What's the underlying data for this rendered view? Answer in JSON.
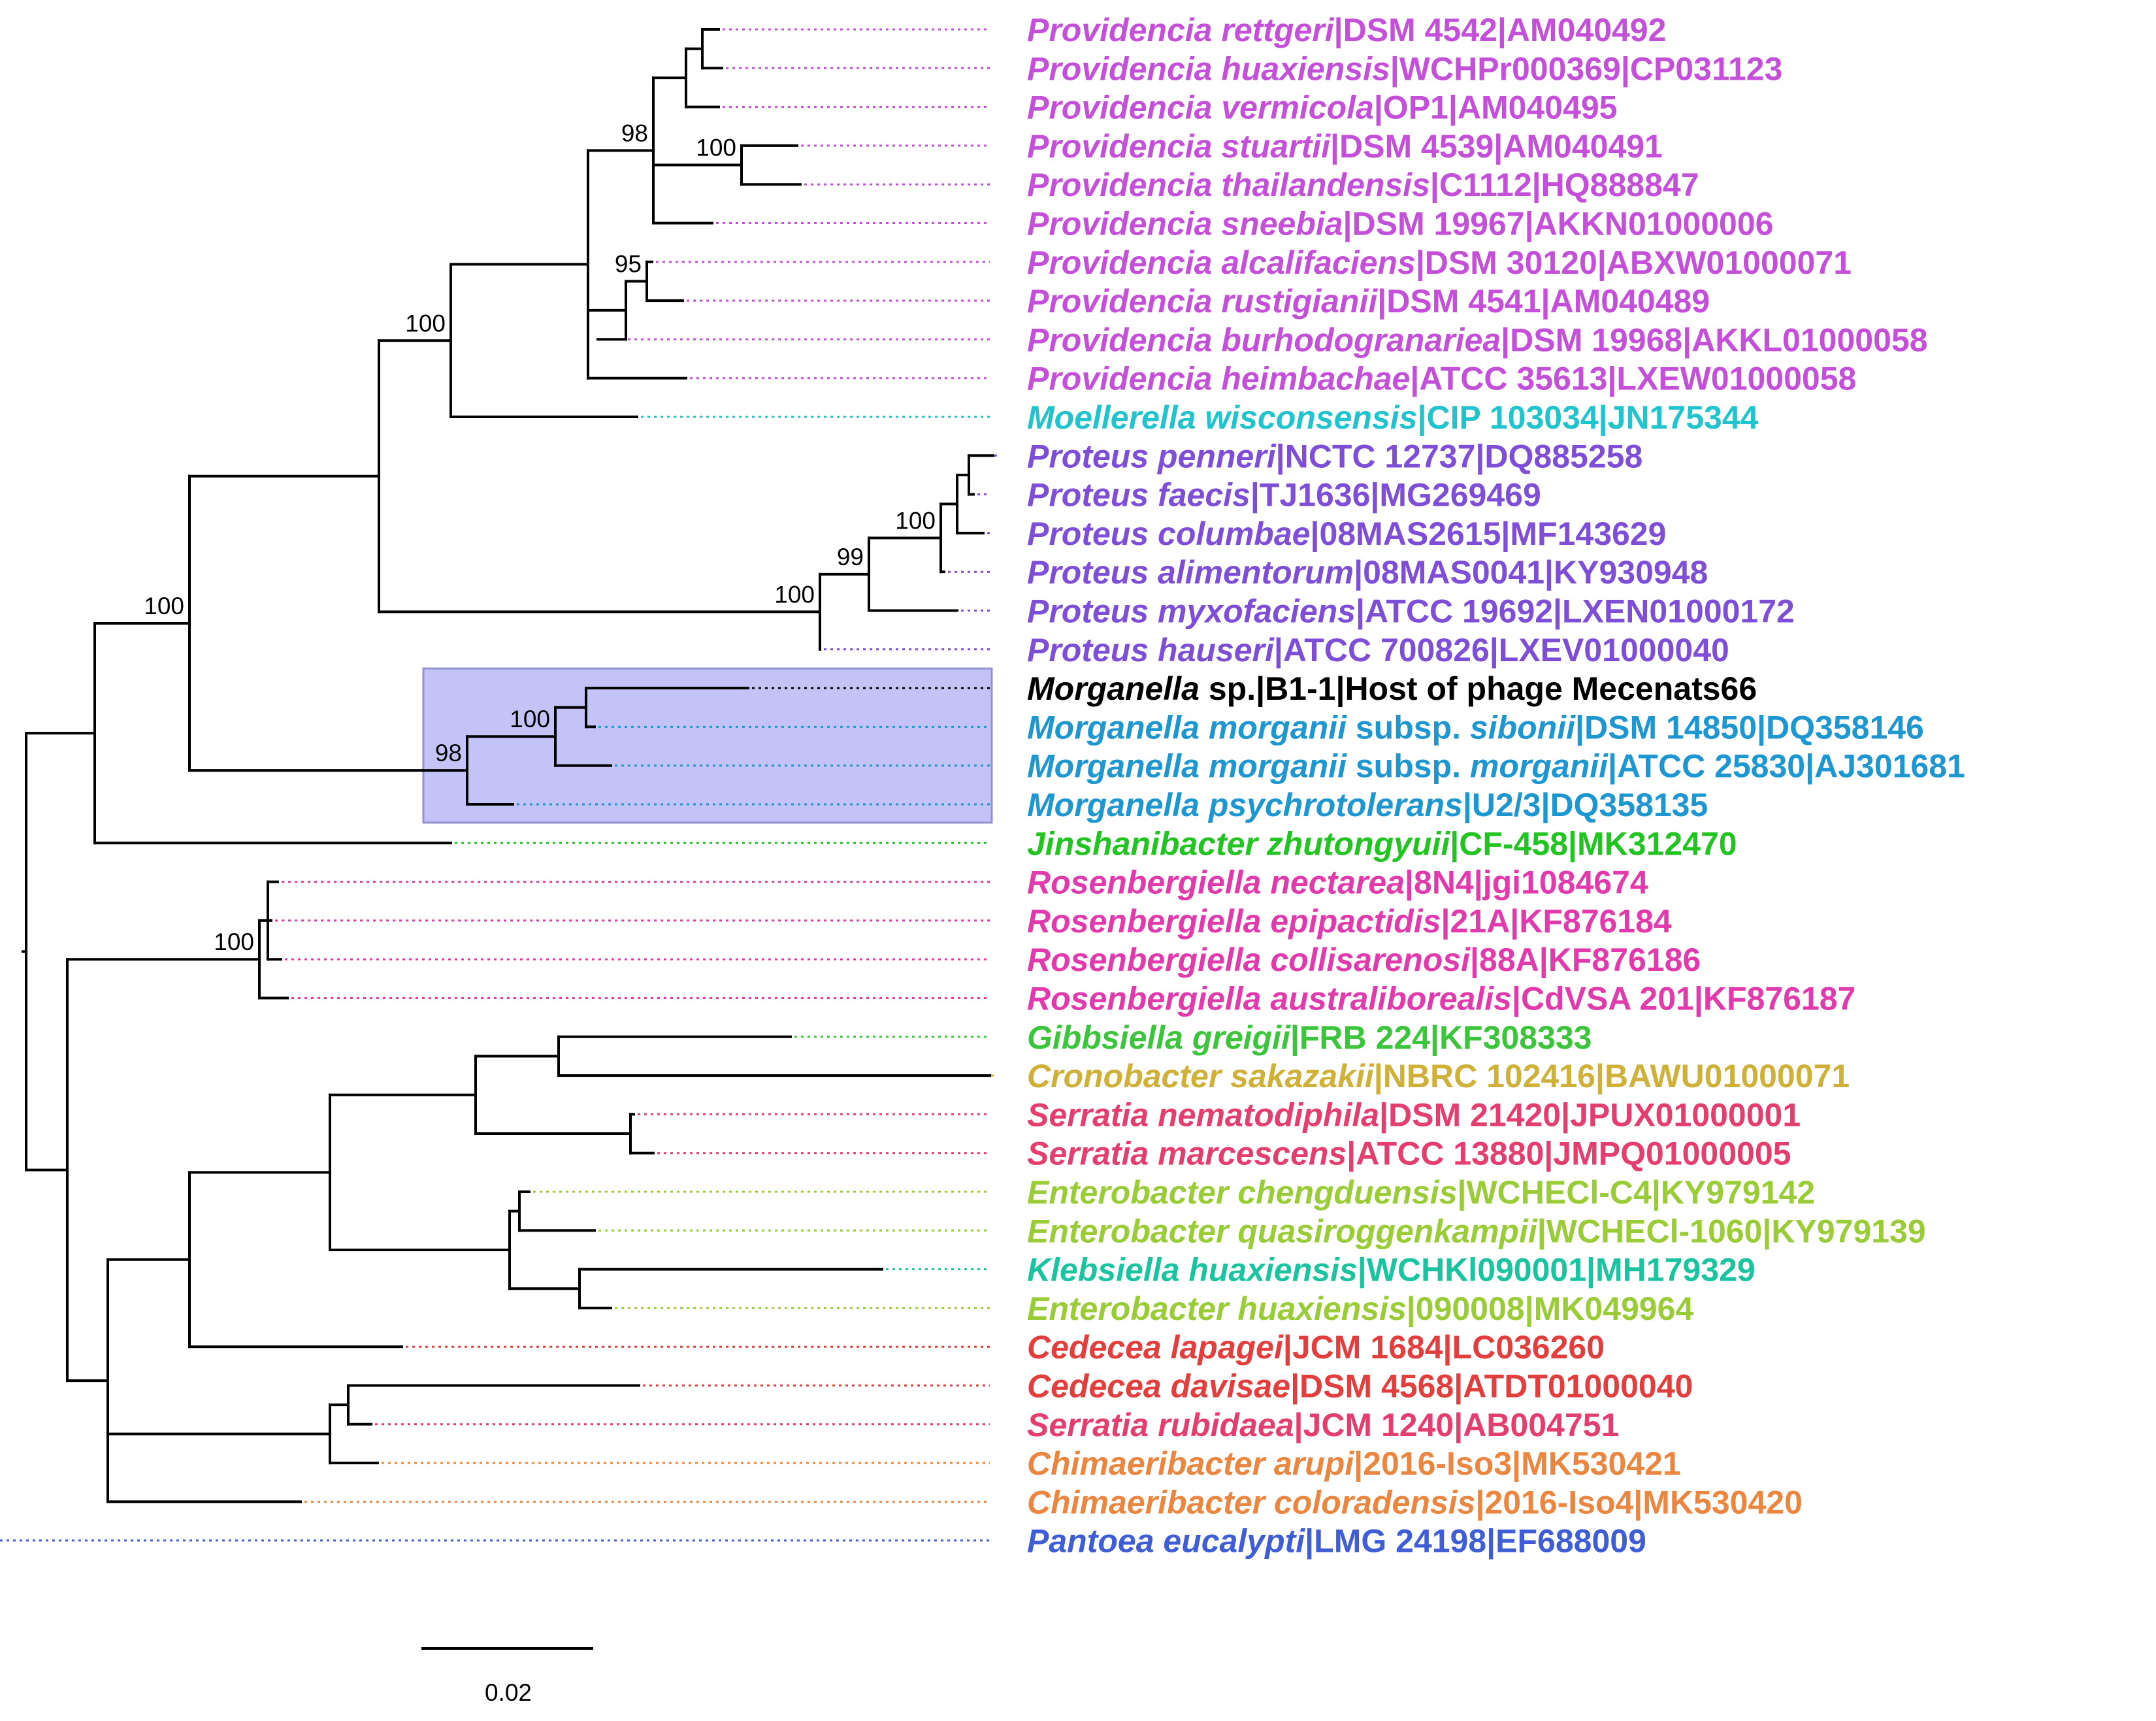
{
  "colors": {
    "providencia": "#c44fd8",
    "moellerella": "#21c3cc",
    "proteus": "#7e4fd6",
    "host": "#000000",
    "morganella": "#1e96cf",
    "jinshanibacter": "#21c421",
    "rosenbergiella": "#e03aac",
    "gibbsiella": "#3cc43c",
    "cronobacter": "#cfb13a",
    "serratia": "#e33e6e",
    "enterobacter": "#99cc36",
    "klebsiella": "#1bc4a0",
    "cedecea": "#e23e3e",
    "chimaeribacter": "#ea8640",
    "pantoea": "#3f5ed6",
    "highlight_fill": "#c3c3f7",
    "highlight_stroke": "#9292cf"
  },
  "taxa": [
    {
      "genus": "Providencia",
      "species": "rettgeri",
      "rest": "|DSM 4542|AM040492",
      "color": "providencia"
    },
    {
      "genus": "Providencia",
      "species": "huaxiensis",
      "rest": "|WCHPr000369|CP031123",
      "color": "providencia"
    },
    {
      "genus": "Providencia",
      "species": "vermicola",
      "rest": "|OP1|AM040495",
      "color": "providencia"
    },
    {
      "genus": "Providencia",
      "species": "stuartii",
      "rest": "|DSM 4539|AM040491",
      "color": "providencia"
    },
    {
      "genus": "Providencia",
      "species": "thailandensis",
      "rest": "|C1112|HQ888847",
      "color": "providencia"
    },
    {
      "genus": "Providencia",
      "species": "sneebia",
      "rest": "|DSM 19967|AKKN01000006",
      "color": "providencia"
    },
    {
      "genus": "Providencia",
      "species": "alcalifaciens",
      "rest": "|DSM 30120|ABXW01000071",
      "color": "providencia"
    },
    {
      "genus": "Providencia",
      "species": "rustigianii",
      "rest": "|DSM 4541|AM040489",
      "color": "providencia"
    },
    {
      "genus": "Providencia",
      "species": "burhodogranariea",
      "rest": "|DSM 19968|AKKL01000058",
      "color": "providencia"
    },
    {
      "genus": "Providencia",
      "species": "heimbachae",
      "rest": "|ATCC 35613|LXEW01000058",
      "color": "providencia"
    },
    {
      "genus": "Moellerella",
      "species": "wisconsensis",
      "rest": "|CIP 103034|JN175344",
      "color": "moellerella"
    },
    {
      "genus": "Proteus",
      "species": "penneri",
      "rest": "|NCTC 12737|DQ885258",
      "color": "proteus"
    },
    {
      "genus": "Proteus",
      "species": "faecis",
      "rest": "|TJ1636|MG269469",
      "color": "proteus"
    },
    {
      "genus": "Proteus",
      "species": "columbae",
      "rest": "|08MAS2615|MF143629",
      "color": "proteus"
    },
    {
      "genus": "Proteus",
      "species": "alimentorum",
      "rest": "|08MAS0041|KY930948",
      "color": "proteus"
    },
    {
      "genus": "Proteus",
      "species": "myxofaciens",
      "rest": "|ATCC 19692|LXEN01000172",
      "color": "proteus"
    },
    {
      "genus": "Proteus",
      "species": "hauseri",
      "rest": "|ATCC 700826|LXEV01000040",
      "color": "proteus"
    },
    {
      "genus": "Morganella",
      "species": "",
      "rest": " sp.|B1-1|Host of phage Mecenats66",
      "color": "host"
    },
    {
      "genus": "Morganella",
      "species": "morganii",
      "mid": " subsp. ",
      "subsp": "sibonii",
      "rest": "|DSM 14850|DQ358146",
      "color": "morganella"
    },
    {
      "genus": "Morganella",
      "species": "morganii",
      "mid": " subsp. ",
      "subsp": "morganii",
      "rest": "|ATCC 25830|AJ301681",
      "color": "morganella"
    },
    {
      "genus": "Morganella",
      "species": "psychrotolerans",
      "rest": "|U2/3|DQ358135",
      "color": "morganella"
    },
    {
      "genus": "Jinshanibacter",
      "species": "zhutongyuii",
      "rest": "|CF-458|MK312470",
      "color": "jinshanibacter"
    },
    {
      "genus": "Rosenbergiella",
      "species": "nectarea",
      "rest": "|8N4|jgi1084674",
      "color": "rosenbergiella"
    },
    {
      "genus": "Rosenbergiella",
      "species": "epipactidis",
      "rest": "|21A|KF876184",
      "color": "rosenbergiella"
    },
    {
      "genus": "Rosenbergiella",
      "species": "collisarenosi",
      "rest": "|88A|KF876186",
      "color": "rosenbergiella"
    },
    {
      "genus": "Rosenbergiella",
      "species": "australiborealis",
      "rest": "|CdVSA 201|KF876187",
      "color": "rosenbergiella"
    },
    {
      "genus": "Gibbsiella",
      "species": "greigii",
      "rest": "|FRB 224|KF308333",
      "color": "gibbsiella"
    },
    {
      "genus": "Cronobacter",
      "species": "sakazakii",
      "rest": "|NBRC 102416|BAWU01000071",
      "color": "cronobacter"
    },
    {
      "genus": "Serratia",
      "species": "nematodiphila",
      "rest": "|DSM 21420|JPUX01000001",
      "color": "serratia"
    },
    {
      "genus": "Serratia",
      "species": "marcescens",
      "rest": "|ATCC 13880|JMPQ01000005",
      "color": "serratia"
    },
    {
      "genus": "Enterobacter",
      "species": "chengduensis",
      "rest": "|WCHECl-C4|KY979142",
      "color": "enterobacter"
    },
    {
      "genus": "Enterobacter",
      "species": "quasiroggenkampii",
      "rest": "|WCHECl-1060|KY979139",
      "color": "enterobacter"
    },
    {
      "genus": "Klebsiella",
      "species": "huaxiensis",
      "rest": "|WCHKl090001|MH179329",
      "color": "klebsiella"
    },
    {
      "genus": "Enterobacter",
      "species": "huaxiensis",
      "rest": "|090008|MK049964",
      "color": "enterobacter"
    },
    {
      "genus": "Cedecea",
      "species": "lapagei",
      "rest": "|JCM 1684|LC036260",
      "color": "cedecea"
    },
    {
      "genus": "Cedecea",
      "species": "davisae",
      "rest": "|DSM 4568|ATDT01000040",
      "color": "cedecea"
    },
    {
      "genus": "Serratia",
      "species": "rubidaea",
      "rest": "|JCM 1240|AB004751",
      "color": "serratia"
    },
    {
      "genus": "Chimaeribacter",
      "species": "arupi",
      "rest": "|2016-Iso3|MK530421",
      "color": "chimaeribacter"
    },
    {
      "genus": "Chimaeribacter",
      "species": "coloradensis",
      "rest": "|2016-Iso4|MK530420",
      "color": "chimaeribacter"
    },
    {
      "genus": "Pantoea",
      "species": "eucalypti",
      "rest": "|LMG 24198|EF688009",
      "color": "pantoea"
    }
  ],
  "bootstrap": [
    {
      "label": "98",
      "node": "prov_inner"
    },
    {
      "label": "100",
      "node": "stuartii_pair"
    },
    {
      "label": "95",
      "node": "alcali_pair"
    },
    {
      "label": "100",
      "node": "providencia_moellerella"
    },
    {
      "label": "100",
      "node": "proteus_core"
    },
    {
      "label": "99",
      "node": "proteus_inner"
    },
    {
      "label": "100",
      "node": "proteus_stem"
    },
    {
      "label": "100",
      "node": "pmp_jin"
    },
    {
      "label": "100",
      "node": "morganella_core"
    },
    {
      "label": "98",
      "node": "morganella_all"
    },
    {
      "label": "100",
      "node": "rosenbergiella"
    }
  ],
  "scale_bar": {
    "label": "0.02"
  }
}
